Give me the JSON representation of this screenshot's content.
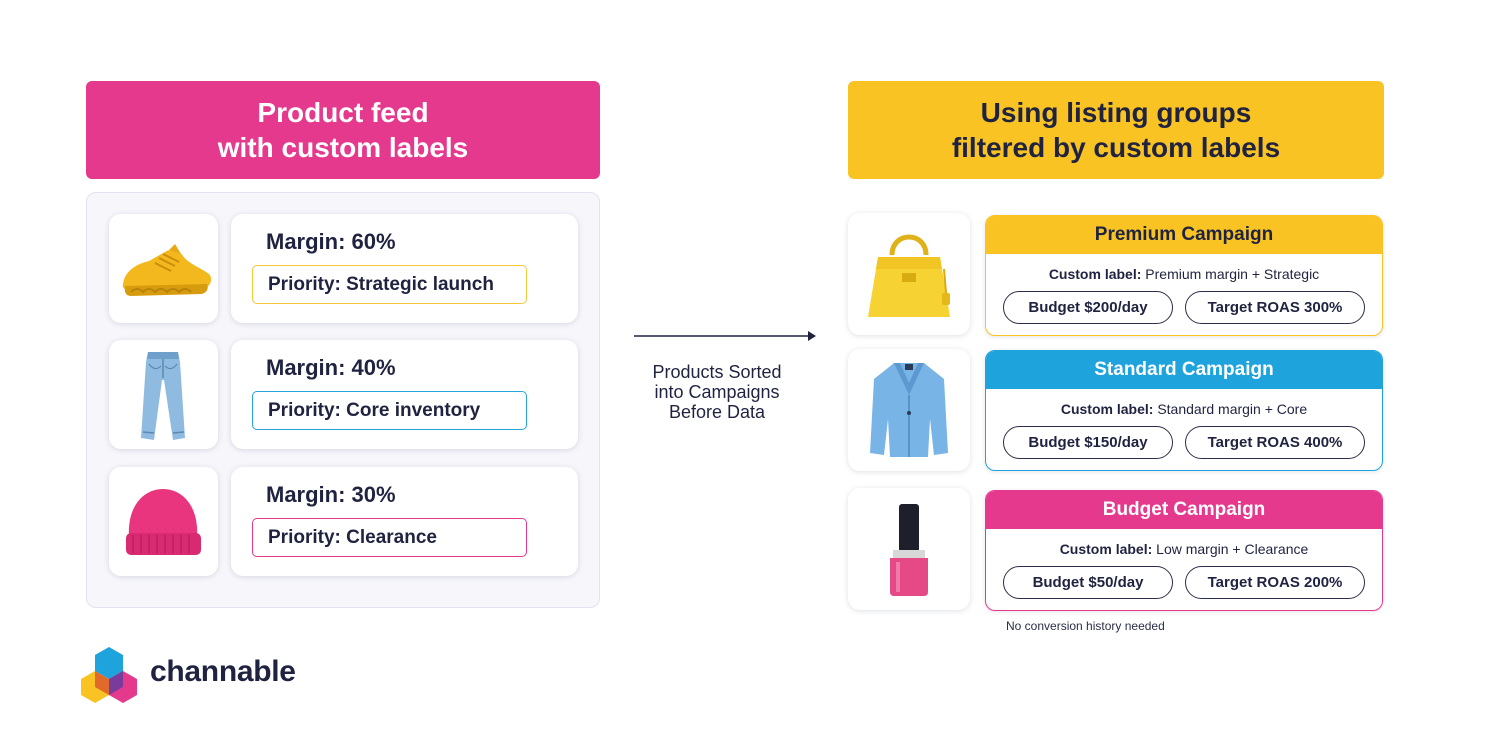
{
  "left_header": {
    "line1": "Product feed",
    "line2": "with custom labels"
  },
  "right_header": {
    "line1": "Using listing groups",
    "line2": "filtered by custom labels"
  },
  "products": [
    {
      "item": "shoe",
      "margin": "Margin: 60%",
      "priority": "Priority: Strategic launch",
      "border_color": "#f6c53a"
    },
    {
      "item": "jeans",
      "margin": "Margin: 40%",
      "priority": "Priority: Core inventory",
      "border_color": "#27a4dc"
    },
    {
      "item": "beanie",
      "margin": "Margin: 30%",
      "priority": "Priority: Clearance",
      "border_color": "#e5398e"
    }
  ],
  "flow_label": {
    "line1": "Products Sorted",
    "line2": "into Campaigns",
    "line3": "Before Data"
  },
  "campaigns": [
    {
      "item": "handbag",
      "title": "Premium Campaign",
      "color": "#f8c323",
      "title_color": "#1f2340",
      "label_key": "Custom label:",
      "label_value": "Premium margin + Strategic",
      "budget": "Budget $200/day",
      "roas": "Target ROAS 300%"
    },
    {
      "item": "blazer",
      "title": "Standard Campaign",
      "color": "#1ea3dd",
      "title_color": "#ffffff",
      "label_key": "Custom label:",
      "label_value": "Standard margin + Core",
      "budget": "Budget $150/day",
      "roas": "Target ROAS 400%"
    },
    {
      "item": "nail-polish",
      "title": "Budget Campaign",
      "color": "#e5398e",
      "title_color": "#ffffff",
      "label_key": "Custom label:",
      "label_value": "Low margin + Clearance",
      "budget": "Budget $50/day",
      "roas": "Target ROAS 200%"
    }
  ],
  "footnote": "No conversion history needed",
  "logo": {
    "text": "channable"
  },
  "colors": {
    "pink": "#e5398e",
    "yellow": "#f8c323",
    "blue": "#1ea3dd",
    "navy": "#1f2340"
  }
}
